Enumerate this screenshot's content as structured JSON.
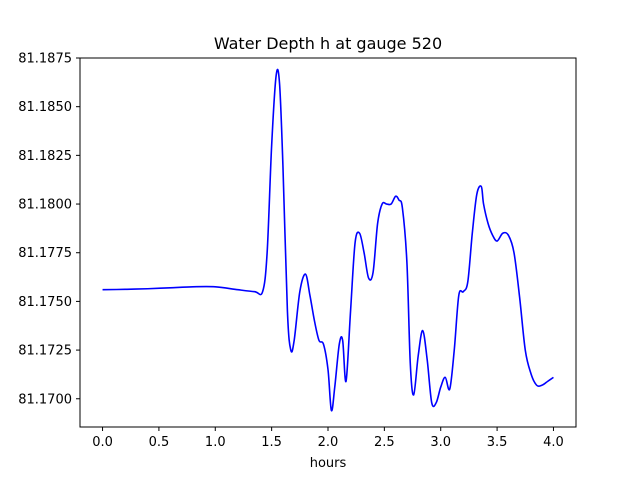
{
  "chart_data": {
    "type": "line",
    "title": "Water Depth h at gauge 520",
    "xlabel": "hours",
    "ylabel": "",
    "xlim": [
      -0.2,
      4.2
    ],
    "ylim": [
      81.16855,
      81.1875
    ],
    "grid": false,
    "xticks": [
      0.0,
      0.5,
      1.0,
      1.5,
      2.0,
      2.5,
      3.0,
      3.5,
      4.0
    ],
    "xtick_labels": [
      "0.0",
      "0.5",
      "1.0",
      "1.5",
      "2.0",
      "2.5",
      "3.0",
      "3.5",
      "4.0"
    ],
    "yticks": [
      81.17,
      81.1725,
      81.175,
      81.1775,
      81.18,
      81.1825,
      81.185,
      81.1875
    ],
    "ytick_labels": [
      "81.1700",
      "81.1725",
      "81.1750",
      "81.1775",
      "81.1800",
      "81.1825",
      "81.1850",
      "81.1875"
    ],
    "series": [
      {
        "color": "#0000ff",
        "x": [
          0.0,
          0.2,
          0.4,
          0.6,
          0.8,
          1.0,
          1.2,
          1.35,
          1.42,
          1.46,
          1.5,
          1.54,
          1.57,
          1.6,
          1.64,
          1.67,
          1.7,
          1.75,
          1.8,
          1.84,
          1.88,
          1.92,
          1.96,
          2.0,
          2.03,
          2.06,
          2.1,
          2.13,
          2.16,
          2.2,
          2.24,
          2.28,
          2.32,
          2.36,
          2.4,
          2.44,
          2.48,
          2.52,
          2.56,
          2.6,
          2.63,
          2.66,
          2.7,
          2.73,
          2.76,
          2.8,
          2.84,
          2.88,
          2.92,
          2.96,
          3.0,
          3.04,
          3.08,
          3.12,
          3.16,
          3.2,
          3.24,
          3.28,
          3.32,
          3.36,
          3.38,
          3.42,
          3.46,
          3.5,
          3.55,
          3.6,
          3.65,
          3.7,
          3.75,
          3.8,
          3.85,
          3.9,
          3.95,
          4.0
        ],
        "y": [
          81.1756,
          81.17562,
          81.17565,
          81.1757,
          81.17575,
          81.17575,
          81.1756,
          81.1755,
          81.1755,
          81.1775,
          81.183,
          81.1866,
          81.1862,
          81.182,
          81.1745,
          81.1725,
          81.173,
          81.1755,
          81.1764,
          81.1753,
          81.174,
          81.173,
          81.1728,
          81.1715,
          81.1694,
          81.1706,
          81.1728,
          81.173,
          81.1709,
          81.1745,
          81.178,
          81.1785,
          81.1775,
          81.1762,
          81.1765,
          81.179,
          81.18,
          81.18,
          81.18,
          81.1804,
          81.1802,
          81.1798,
          81.177,
          81.1718,
          81.1702,
          81.1722,
          81.1735,
          81.172,
          81.1698,
          81.1698,
          81.1706,
          81.1711,
          81.1705,
          81.1725,
          81.1753,
          81.1755,
          81.176,
          81.1785,
          81.1805,
          81.1809,
          81.18,
          81.179,
          81.1784,
          81.1781,
          81.1785,
          81.1784,
          81.1775,
          81.1752,
          81.1725,
          81.1713,
          81.1707,
          81.1707,
          81.1709,
          81.1711
        ]
      }
    ]
  }
}
